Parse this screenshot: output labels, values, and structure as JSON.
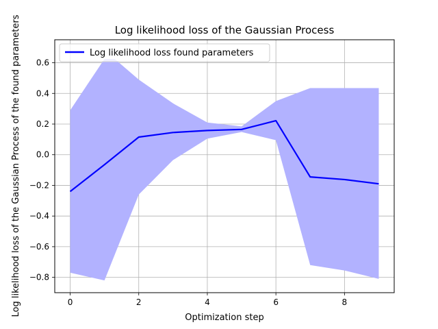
{
  "chart_data": {
    "type": "line",
    "title": "Log likelihood loss of the Gaussian Process",
    "xlabel": "Optimization step",
    "ylabel": "Log likelihood loss of the Gaussian Process of the found parameters",
    "xlim": [
      -0.45,
      9.45
    ],
    "ylim": [
      -0.9,
      0.75
    ],
    "xticks": [
      0,
      2,
      4,
      6,
      8
    ],
    "yticks": [
      -0.8,
      -0.6,
      -0.4,
      -0.2,
      0.0,
      0.2,
      0.4,
      0.6
    ],
    "xtick_labels": [
      "0",
      "2",
      "4",
      "6",
      "8"
    ],
    "ytick_labels": [
      "−0.8",
      "−0.6",
      "−0.4",
      "−0.2",
      "0.0",
      "0.2",
      "0.4",
      "0.6"
    ],
    "grid": true,
    "legend": "upper-left",
    "series": [
      {
        "name": "Log likelihood loss found parameters",
        "color": "#0000ff",
        "x": [
          0,
          1,
          2,
          3,
          4,
          5,
          6,
          7,
          8,
          9
        ],
        "y": [
          -0.24,
          -0.065,
          0.115,
          0.145,
          0.158,
          0.165,
          0.222,
          -0.145,
          -0.162,
          -0.19
        ]
      }
    ],
    "band": {
      "color": "#b2b2ff",
      "x": [
        0,
        1,
        1.3,
        2,
        3,
        4,
        5,
        6,
        7,
        8,
        9
      ],
      "upper": [
        0.29,
        0.625,
        0.625,
        0.49,
        0.335,
        0.21,
        0.185,
        0.35,
        0.435,
        0.435,
        0.435
      ],
      "lower": [
        -0.77,
        -0.82,
        -0.655,
        -0.26,
        -0.035,
        0.105,
        0.148,
        0.095,
        -0.72,
        -0.755,
        -0.81
      ]
    }
  }
}
